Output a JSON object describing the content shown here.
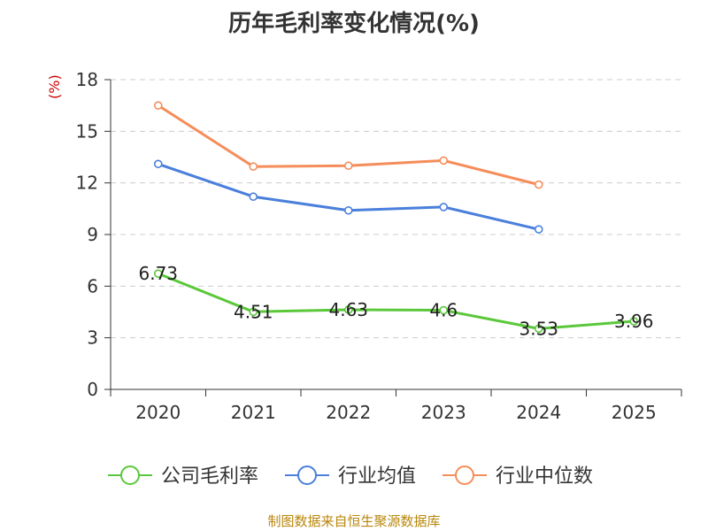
{
  "title": "历年毛利率变化情况(%)",
  "source": "制图数据来自恒生聚源数据库",
  "chart_data": {
    "type": "line",
    "title": "历年毛利率变化情况(%)",
    "ylabel": "(%)",
    "xlabel": "",
    "categories": [
      "2020",
      "2021",
      "2022",
      "2023",
      "2024",
      "2025"
    ],
    "ylim": [
      0,
      18
    ],
    "yticks": [
      0,
      3,
      6,
      9,
      12,
      15,
      18
    ],
    "grid": true,
    "legend_position": "bottom",
    "series": [
      {
        "name": "公司毛利率",
        "color": "#5ac83a",
        "values": [
          6.73,
          4.51,
          4.63,
          4.6,
          3.53,
          3.96
        ],
        "labels": [
          "6.73",
          "4.51",
          "4.63",
          "4.6",
          "3.53",
          "3.96"
        ]
      },
      {
        "name": "行业均值",
        "color": "#4a7fdc",
        "values": [
          13.1,
          11.2,
          10.4,
          10.6,
          9.3,
          null
        ]
      },
      {
        "name": "行业中位数",
        "color": "#f58d5a",
        "values": [
          16.5,
          12.95,
          13.0,
          13.3,
          11.9,
          null
        ]
      }
    ]
  }
}
